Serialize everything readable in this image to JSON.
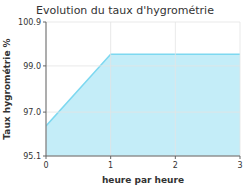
{
  "chart_data": {
    "type": "area",
    "title": "Evolution du taux d'hygrométrie",
    "x_label": "heure par heure",
    "y_label": "Taux hygrométrie %",
    "x": [
      0,
      1,
      3
    ],
    "values": [
      96.4,
      99.5,
      99.5
    ],
    "color": "#7dd8f0",
    "xlim": [
      0,
      3
    ],
    "ylim": [
      95.1,
      100.9
    ],
    "xticks": [
      0,
      1,
      2,
      3
    ],
    "yticks": [
      95.1,
      {
        "value": 97.0,
        "label": "97.0"
      },
      {
        "value": 99.0,
        "label": "99.0"
      },
      100.9
    ],
    "grid": true
  }
}
